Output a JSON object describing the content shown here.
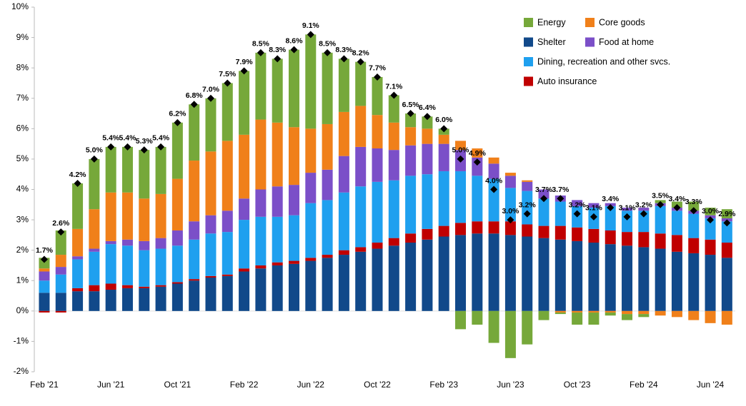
{
  "chart_data": {
    "type": "stacked_bar",
    "categories": [
      "Feb '21",
      null,
      null,
      null,
      "Jun '21",
      null,
      null,
      null,
      "Oct '21",
      null,
      null,
      null,
      "Feb '22",
      null,
      null,
      null,
      "Jun '22",
      null,
      null,
      null,
      "Oct '22",
      null,
      null,
      null,
      "Feb '23",
      null,
      null,
      null,
      "Jun '23",
      null,
      null,
      null,
      "Oct '23",
      null,
      null,
      null,
      "Feb '24",
      null,
      null,
      null,
      "Jun '24",
      null
    ],
    "series": [
      {
        "name": "Shelter",
        "color": "#11498a",
        "values": [
          0.6,
          0.6,
          0.65,
          0.65,
          0.7,
          0.75,
          0.75,
          0.8,
          0.9,
          1.0,
          1.1,
          1.15,
          1.3,
          1.4,
          1.5,
          1.55,
          1.65,
          1.75,
          1.85,
          1.95,
          2.05,
          2.15,
          2.25,
          2.35,
          2.45,
          2.5,
          2.55,
          2.55,
          2.5,
          2.45,
          2.4,
          2.35,
          2.3,
          2.25,
          2.2,
          2.15,
          2.1,
          2.05,
          1.95,
          1.9,
          1.85,
          1.75
        ]
      },
      {
        "name": "Auto insurance",
        "color": "#c00000",
        "values": [
          -0.05,
          -0.05,
          0.1,
          0.2,
          0.2,
          0.1,
          0.05,
          0.05,
          0.05,
          0.05,
          0.05,
          0.05,
          0.1,
          0.1,
          0.1,
          0.1,
          0.1,
          0.1,
          0.15,
          0.15,
          0.2,
          0.25,
          0.3,
          0.35,
          0.35,
          0.4,
          0.4,
          0.4,
          0.45,
          0.4,
          0.4,
          0.45,
          0.45,
          0.45,
          0.45,
          0.45,
          0.5,
          0.5,
          0.55,
          0.5,
          0.5,
          0.5
        ]
      },
      {
        "name": "Dining, recreation and other svcs.",
        "color": "#1fa0ef",
        "values": [
          0.4,
          0.6,
          0.95,
          1.1,
          1.3,
          1.3,
          1.2,
          1.2,
          1.2,
          1.3,
          1.4,
          1.4,
          1.6,
          1.6,
          1.5,
          1.5,
          1.8,
          1.8,
          1.9,
          2.0,
          2.0,
          1.9,
          1.9,
          1.8,
          1.8,
          1.7,
          1.5,
          1.4,
          1.1,
          1.1,
          0.9,
          0.8,
          0.7,
          0.7,
          0.8,
          0.7,
          0.7,
          0.9,
          0.8,
          0.8,
          0.7,
          0.7
        ]
      },
      {
        "name": "Food at home",
        "color": "#7b4fc8",
        "values": [
          0.3,
          0.25,
          0.1,
          0.1,
          0.1,
          0.2,
          0.3,
          0.35,
          0.5,
          0.6,
          0.6,
          0.7,
          0.7,
          0.9,
          1.0,
          1.0,
          1.0,
          1.0,
          1.2,
          1.3,
          1.1,
          1.0,
          1.0,
          1.0,
          0.9,
          0.7,
          0.6,
          0.5,
          0.4,
          0.3,
          0.3,
          0.2,
          0.2,
          0.15,
          0.1,
          0.1,
          0.1,
          0.1,
          0.1,
          0.1,
          0.1,
          0.1
        ]
      },
      {
        "name": "Core goods",
        "color": "#f0801a",
        "values": [
          0.1,
          0.4,
          0.9,
          1.3,
          1.6,
          1.55,
          1.4,
          1.45,
          1.7,
          2.0,
          2.1,
          2.3,
          2.1,
          2.3,
          2.1,
          1.9,
          1.45,
          1.5,
          1.45,
          1.35,
          1.1,
          0.9,
          0.6,
          0.5,
          0.3,
          0.3,
          0.3,
          0.2,
          0.1,
          0.05,
          0,
          -0.05,
          -0.05,
          -0.05,
          -0.05,
          -0.1,
          -0.1,
          -0.15,
          -0.2,
          -0.3,
          -0.4,
          -0.45
        ]
      },
      {
        "name": "Energy",
        "color": "#76a83a",
        "values": [
          0.35,
          0.8,
          1.5,
          1.65,
          1.5,
          1.5,
          1.6,
          1.55,
          1.85,
          1.85,
          1.75,
          1.9,
          2.1,
          2.2,
          2.1,
          2.55,
          3.1,
          2.35,
          1.75,
          1.45,
          1.25,
          0.9,
          0.45,
          0.4,
          0.2,
          -0.6,
          -0.45,
          -1.05,
          -1.55,
          -1.1,
          -0.3,
          -0.05,
          -0.4,
          -0.4,
          -0.1,
          -0.2,
          -0.1,
          0.1,
          0.2,
          0.3,
          0.25,
          0.3
        ]
      }
    ],
    "totals": {
      "color": "#000000",
      "values": [
        1.7,
        2.6,
        4.2,
        5.0,
        5.4,
        5.4,
        5.3,
        5.4,
        6.2,
        6.8,
        7.0,
        7.5,
        7.9,
        8.5,
        8.3,
        8.6,
        9.1,
        8.5,
        8.3,
        8.2,
        7.7,
        7.1,
        6.5,
        6.4,
        6.0,
        5.0,
        4.9,
        4.0,
        3.0,
        3.2,
        3.7,
        3.7,
        3.2,
        3.1,
        3.4,
        3.1,
        3.2,
        3.5,
        3.4,
        3.3,
        3.0,
        2.9
      ],
      "value_labels": [
        "1.7%",
        "2.6%",
        "4.2%",
        "5.0%",
        "5.4%",
        "5.4%",
        "5.3%",
        "5.4%",
        "6.2%",
        "6.8%",
        "7.0%",
        "7.5%",
        "7.9%",
        "8.5%",
        "8.3%",
        "8.6%",
        "9.1%",
        "8.5%",
        "8.3%",
        "8.2%",
        "7.7%",
        "7.1%",
        "6.5%",
        "6.4%",
        "6.0%",
        "5.0%",
        "4.9%",
        "4.0%",
        "3.0%",
        "3.2%",
        "3.7%",
        "3.7%",
        "3.2%",
        "3.1%",
        "3.4%",
        "3.1%",
        "3.2%",
        "3.5%",
        "3.4%",
        "3.3%",
        "3.0%",
        "2.9%"
      ]
    },
    "ylim": [
      -2,
      10
    ],
    "yticks": [
      {
        "value": -2,
        "label": "-2%"
      },
      {
        "value": -1,
        "label": "-1%"
      },
      {
        "value": 0,
        "label": "0%"
      },
      {
        "value": 1,
        "label": "1%"
      },
      {
        "value": 2,
        "label": "2%"
      },
      {
        "value": 3,
        "label": "3%"
      },
      {
        "value": 4,
        "label": "4%"
      },
      {
        "value": 5,
        "label": "5%"
      },
      {
        "value": 6,
        "label": "6%"
      },
      {
        "value": 7,
        "label": "7%"
      },
      {
        "value": 8,
        "label": "8%"
      },
      {
        "value": 9,
        "label": "9%"
      },
      {
        "value": 10,
        "label": "10%"
      }
    ],
    "grid": false
  }
}
